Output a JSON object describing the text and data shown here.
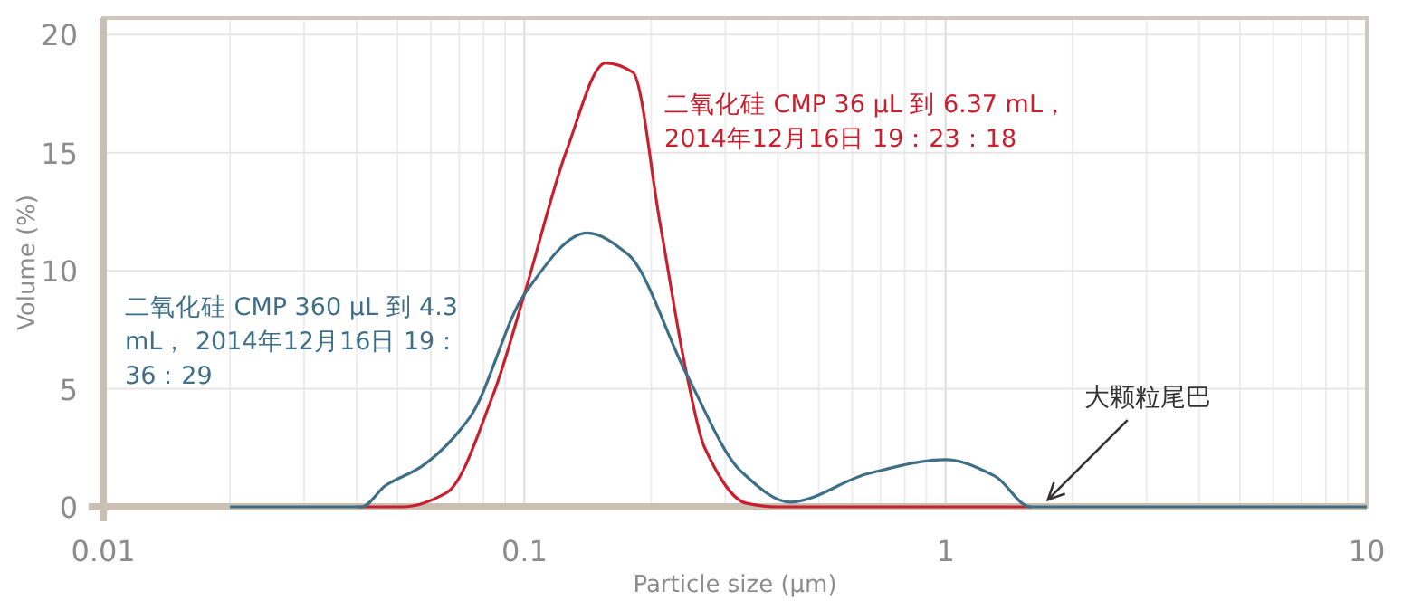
{
  "chart_data": {
    "type": "line",
    "xlabel": "Particle size (µm)",
    "ylabel": "Volume (%)",
    "log": "x",
    "xlim": [
      0.01,
      10
    ],
    "ylim": [
      0,
      20.7
    ],
    "xticks": [
      0.01,
      0.1,
      1,
      10
    ],
    "yticks": [
      0,
      5,
      10,
      15,
      20
    ],
    "grid": true,
    "marker": "none",
    "line_style": "solid",
    "series": [
      {
        "name": "二氧化硅 CMP 36 µL 到 6.37 mL， 2014年12月16日 19：23：18",
        "color": "#c8202f",
        "x": [
          0.04,
          0.0515,
          0.0654,
          0.0845,
          0.1,
          0.126,
          0.156,
          0.181,
          0.21,
          0.243,
          0.268,
          0.337,
          0.4,
          1.0,
          1.6
        ],
        "values": [
          0,
          0,
          0.6,
          4.8,
          9.0,
          15.1,
          18.8,
          18.4,
          12.0,
          5.6,
          2.5,
          0.15,
          0,
          0,
          0
        ]
      },
      {
        "name": "二氧化硅 CMP 360 µL 到 4.3 mL， 2014年12月16日 19：36：29",
        "color": "#3f6f86",
        "x": [
          0.02,
          0.0411,
          0.0468,
          0.0569,
          0.0743,
          0.1,
          0.141,
          0.176,
          0.243,
          0.327,
          0.428,
          0.653,
          1.0,
          1.31,
          1.59,
          10
        ],
        "values": [
          0,
          0,
          0.9,
          1.7,
          3.8,
          9.0,
          11.6,
          10.7,
          5.6,
          1.5,
          0.2,
          1.4,
          2.0,
          1.3,
          0,
          0
        ]
      }
    ],
    "annotations": [
      {
        "text": "大颗粒尾巴",
        "x": 1.75,
        "y": 0.3
      }
    ]
  }
}
